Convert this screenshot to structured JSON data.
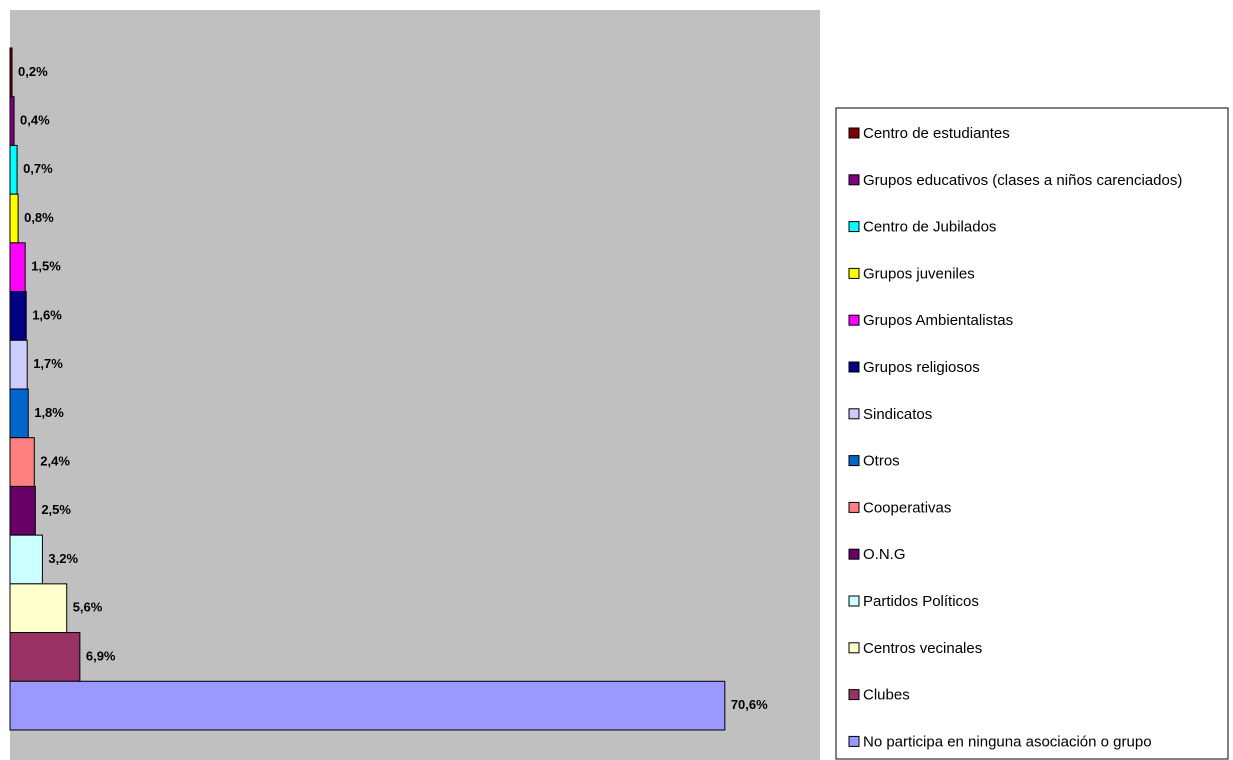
{
  "chart_data": {
    "type": "bar",
    "orientation": "horizontal",
    "categories": [
      "Centro de estudiantes",
      "Grupos educativos (clases a niños carenciados)",
      "Centro de Jubilados",
      "Grupos juveniles",
      "Grupos Ambientalistas",
      "Grupos religiosos",
      "Sindicatos",
      "Otros",
      "Cooperativas",
      "O.N.G",
      "Partidos Políticos",
      "Centros vecinales",
      "Clubes",
      "No participa en ninguna asociación o grupo"
    ],
    "values": [
      0.2,
      0.4,
      0.7,
      0.8,
      1.5,
      1.6,
      1.7,
      1.8,
      2.4,
      2.5,
      3.2,
      5.6,
      6.9,
      70.6
    ],
    "value_labels": [
      "0,2%",
      "0,4%",
      "0,7%",
      "0,8%",
      "1,5%",
      "1,6%",
      "1,7%",
      "1,8%",
      "2,4%",
      "2,5%",
      "3,2%",
      "5,6%",
      "6,9%",
      "70,6%"
    ],
    "colors": [
      "#800000",
      "#800080",
      "#00ffff",
      "#ffff00",
      "#ff00ff",
      "#000080",
      "#ccccff",
      "#0066cc",
      "#ff8080",
      "#660066",
      "#ccffff",
      "#ffffcc",
      "#993366",
      "#9999ff"
    ],
    "xlim": [
      0,
      80
    ],
    "legend": "right"
  }
}
